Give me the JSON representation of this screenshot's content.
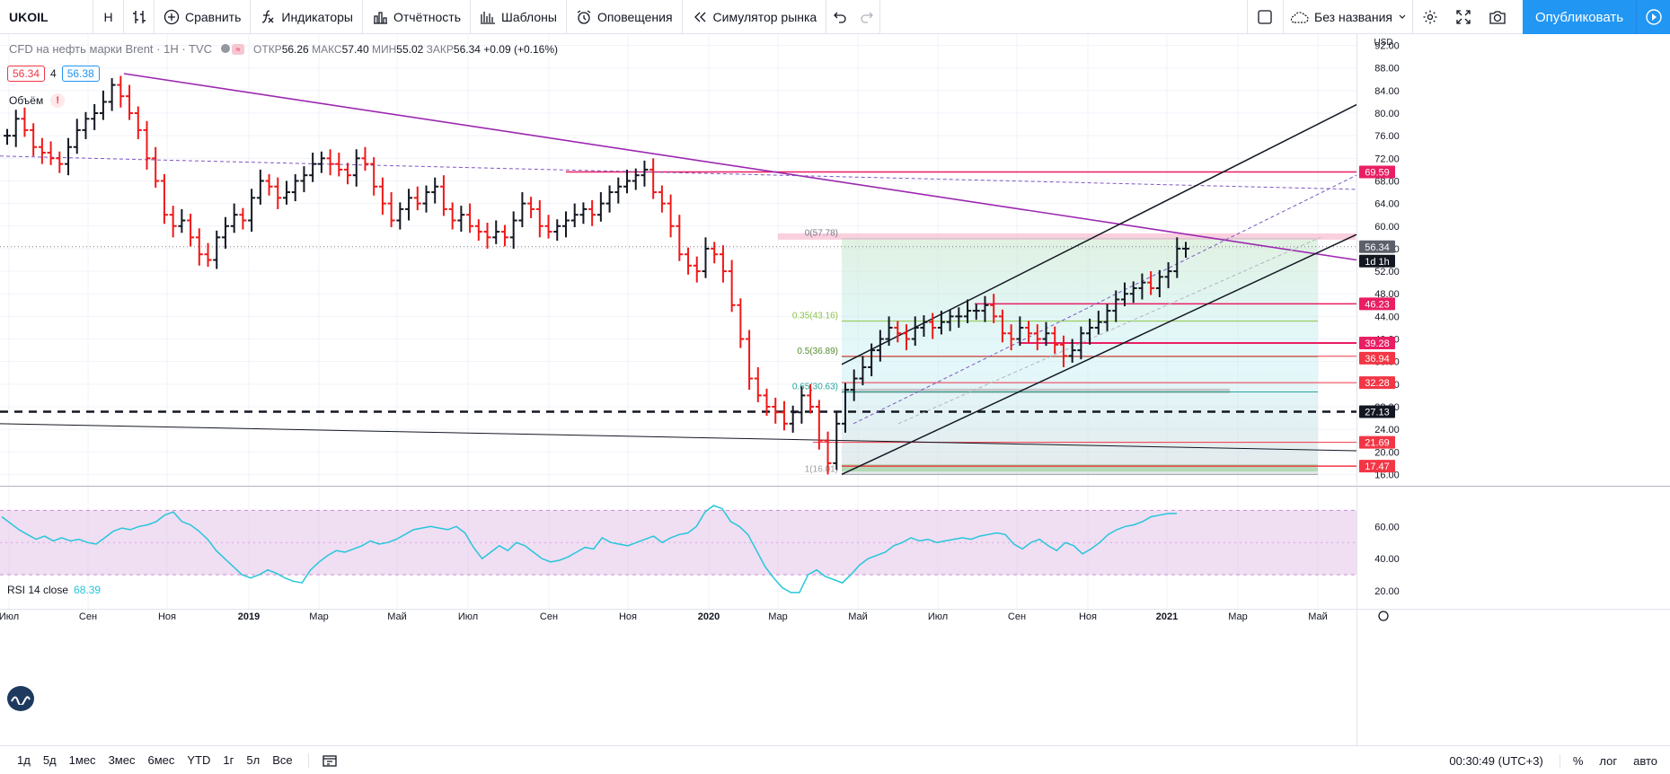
{
  "toolbar": {
    "symbol": "UKOIL",
    "interval": "H",
    "compare": "Сравнить",
    "indicators": "Индикаторы",
    "reports": "Отчётность",
    "templates": "Шаблоны",
    "alerts": "Оповещения",
    "replay": "Симулятор рынка",
    "layout_name": "Без названия",
    "publish": "Опубликовать"
  },
  "legend": {
    "title": "CFD на нефть марки Brent · 1H · TVC",
    "open_label": "ОТКР",
    "open": "56.26",
    "high_label": "МАКС",
    "high": "57.40",
    "low_label": "МИН",
    "low": "55.02",
    "close_label": "ЗАКР",
    "close": "56.34",
    "change": "+0.09 (+0.16%)",
    "bid": "56.34",
    "spread": "4",
    "ask": "56.38",
    "volume_label": "Объём",
    "rsi_label": "RSI 14 close",
    "rsi_value": "68.39"
  },
  "price_axis": {
    "currency": "USD",
    "ticks": [
      "92.00",
      "88.00",
      "84.00",
      "80.00",
      "76.00",
      "72.00",
      "68.00",
      "64.00",
      "60.00",
      "56.00",
      "52.00",
      "48.00",
      "44.00",
      "40.00",
      "36.00",
      "32.00",
      "28.00",
      "24.00",
      "20.00",
      "16.00"
    ],
    "badges": [
      {
        "value": "69.59",
        "color": "#e91e63"
      },
      {
        "value": "56.34",
        "color": "#5d606b"
      },
      {
        "value": "1d 1h",
        "color": "#131722"
      },
      {
        "value": "46.23",
        "color": "#e91e63"
      },
      {
        "value": "39.28",
        "color": "#e91e63"
      },
      {
        "value": "36.94",
        "color": "#f23645"
      },
      {
        "value": "32.28",
        "color": "#f23645"
      },
      {
        "value": "27.13",
        "color": "#131722"
      },
      {
        "value": "21.69",
        "color": "#f23645"
      },
      {
        "value": "17.47",
        "color": "#f23645"
      }
    ]
  },
  "rsi_axis": {
    "ticks": [
      "60.00",
      "40.00",
      "20.00"
    ]
  },
  "time_axis": [
    "Июл",
    "Сен",
    "Ноя",
    "2019",
    "Мар",
    "Май",
    "Июл",
    "Сен",
    "Ноя",
    "2020",
    "Мар",
    "Май",
    "Июл",
    "Сен",
    "Ноя",
    "2021",
    "Мар",
    "Май"
  ],
  "fib_labels": [
    "0(57.78)",
    "0.35(43.16)",
    "0.5(36.89)",
    "0.65(30.63)",
    "1(16.01)"
  ],
  "bottom": {
    "ranges": [
      "1д",
      "5д",
      "1мес",
      "3мес",
      "6мес",
      "YTD",
      "1г",
      "5л",
      "Все"
    ],
    "clock": "00:30:49 (UTC+3)",
    "percent": "%",
    "log": "лог",
    "auto": "авто"
  },
  "chart_data": {
    "type": "candlestick-ohlc",
    "title": "CFD на нефть марки Brent · 1H · TVC",
    "y_range": [
      14,
      94
    ],
    "x_labels": [
      "Июл",
      "Сен",
      "Ноя",
      "2019",
      "Мар",
      "Май",
      "Июл",
      "Сен",
      "Ноя",
      "2020",
      "Мар",
      "Май",
      "Июл",
      "Сен",
      "Ноя",
      "2021",
      "Мар",
      "Май"
    ],
    "closes": [
      76,
      79,
      77,
      74,
      73,
      72,
      71,
      74,
      77,
      79,
      80,
      82,
      85,
      83,
      80,
      77,
      72,
      68,
      62,
      60,
      61,
      58,
      55,
      54,
      58,
      60,
      62,
      61,
      65,
      68,
      67,
      65,
      66,
      68,
      69,
      71,
      72,
      71,
      70,
      69,
      72,
      71,
      67,
      64,
      61,
      63,
      65,
      64,
      66,
      67,
      63,
      61,
      62,
      60,
      59,
      58,
      59,
      58,
      61,
      64,
      63,
      60,
      59,
      60,
      61,
      62,
      63,
      62,
      64,
      66,
      67,
      68,
      69,
      70,
      66,
      64,
      60,
      55,
      53,
      52,
      56,
      55,
      52,
      46,
      40,
      33,
      30,
      28,
      27,
      25,
      27,
      30,
      28,
      22,
      18,
      25,
      31,
      33,
      35,
      38,
      40,
      42,
      41,
      40,
      42,
      43,
      42,
      43,
      44,
      44,
      45,
      45,
      46,
      44,
      41,
      40,
      42,
      41,
      40,
      41,
      39,
      37,
      38,
      41,
      42,
      43,
      45,
      47,
      48,
      49,
      50,
      49,
      51,
      52,
      56,
      56
    ],
    "rsi": [
      66,
      62,
      58,
      55,
      52,
      54,
      51,
      53,
      51,
      52,
      50,
      49,
      53,
      57,
      59,
      58,
      60,
      61,
      63,
      67,
      69,
      63,
      61,
      57,
      52,
      45,
      40,
      35,
      30,
      28,
      30,
      33,
      31,
      28,
      26,
      25,
      33,
      38,
      42,
      45,
      44,
      46,
      48,
      51,
      49,
      50,
      52,
      55,
      58,
      59,
      60,
      59,
      58,
      60,
      56,
      47,
      40,
      44,
      48,
      45,
      50,
      48,
      44,
      40,
      38,
      39,
      41,
      44,
      47,
      46,
      53,
      50,
      49,
      48,
      50,
      52,
      54,
      50,
      53,
      55,
      56,
      60,
      69,
      73,
      71,
      63,
      60,
      55,
      45,
      35,
      28,
      22,
      19,
      19,
      30,
      33,
      29,
      27,
      25,
      30,
      36,
      40,
      42,
      44,
      48,
      50,
      53,
      51,
      52,
      50,
      51,
      52,
      53,
      52,
      54,
      55,
      56,
      55,
      49,
      46,
      50,
      52,
      48,
      45,
      50,
      48,
      43,
      46,
      50,
      55,
      58,
      60,
      61,
      63,
      66,
      67,
      68,
      68
    ]
  }
}
